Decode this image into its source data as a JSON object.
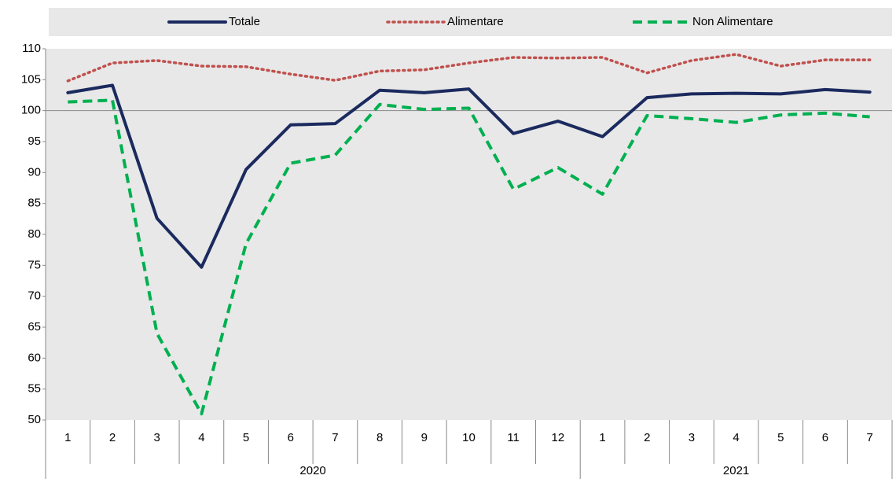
{
  "chart_data": {
    "type": "line",
    "categories": [
      "1",
      "2",
      "3",
      "4",
      "5",
      "6",
      "7",
      "8",
      "9",
      "10",
      "11",
      "12",
      "1",
      "2",
      "3",
      "4",
      "5",
      "6",
      "7"
    ],
    "category_groups": [
      "2020",
      "2020",
      "2020",
      "2020",
      "2020",
      "2020",
      "2020",
      "2020",
      "2020",
      "2020",
      "2020",
      "2020",
      "2021",
      "2021",
      "2021",
      "2021",
      "2021",
      "2021",
      "2021"
    ],
    "series": [
      {
        "name": "Totale",
        "color": "#1b2a5e",
        "dash": "solid",
        "values": [
          102.9,
          104.1,
          82.6,
          74.7,
          90.5,
          97.7,
          97.9,
          103.3,
          102.9,
          103.5,
          96.3,
          98.3,
          95.8,
          102.1,
          102.7,
          102.8,
          102.7,
          103.4,
          103.0
        ]
      },
      {
        "name": "Alimentare",
        "color": "#c0504d",
        "dash": "dotted",
        "values": [
          104.8,
          107.7,
          108.1,
          107.2,
          107.1,
          105.9,
          104.9,
          106.4,
          106.6,
          107.7,
          108.6,
          108.5,
          108.6,
          106.1,
          108.1,
          109.1,
          107.2,
          108.2,
          108.2
        ]
      },
      {
        "name": "Non Alimentare",
        "color": "#00b050",
        "dash": "dashed",
        "values": [
          101.4,
          101.7,
          64.0,
          51.0,
          78.5,
          91.5,
          92.8,
          101.0,
          100.2,
          100.4,
          87.3,
          90.8,
          86.5,
          99.2,
          98.7,
          98.1,
          99.3,
          99.6,
          99.0
        ]
      }
    ],
    "ylim": [
      50,
      110
    ],
    "yticks": [
      50,
      55,
      60,
      65,
      70,
      75,
      80,
      85,
      90,
      95,
      100,
      105,
      110
    ],
    "reference_line": 100,
    "legend": "top",
    "grid": false
  }
}
